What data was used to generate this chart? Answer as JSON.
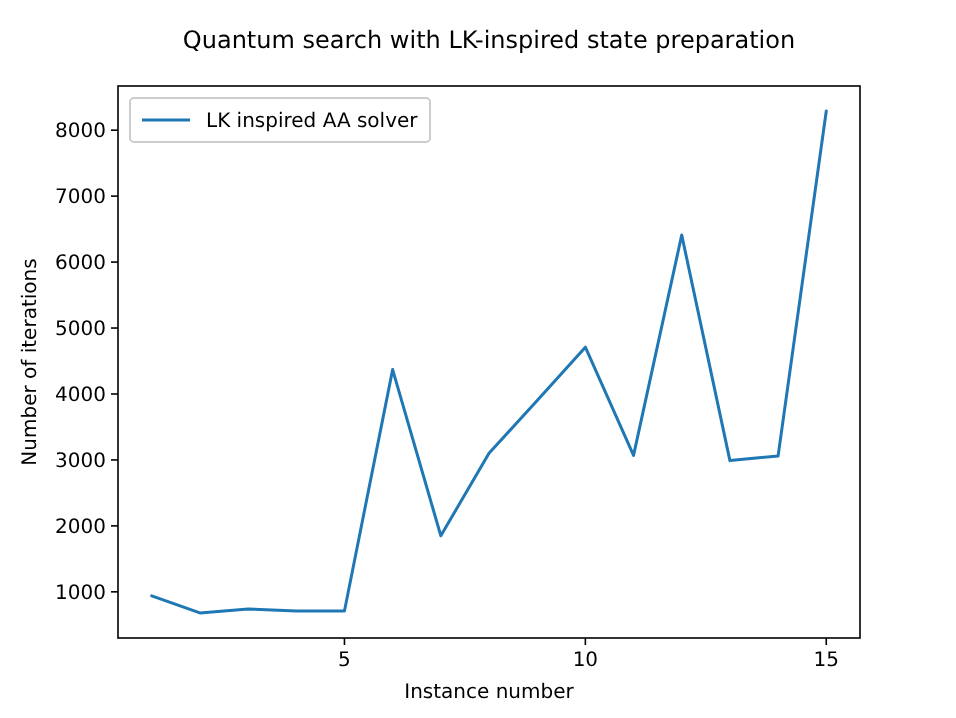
{
  "chart_data": {
    "type": "line",
    "title": "Quantum search with LK-inspired state preparation",
    "xlabel": "Instance number",
    "ylabel": "Number of iterations",
    "x": [
      1,
      2,
      3,
      4,
      5,
      6,
      7,
      8,
      9,
      10,
      11,
      12,
      13,
      14,
      15
    ],
    "series": [
      {
        "name": "LK inspired AA solver",
        "color": "#1f77b4",
        "values": [
          940,
          680,
          740,
          710,
          710,
          4370,
          1850,
          3100,
          3900,
          4710,
          3070,
          6410,
          2990,
          3060,
          8290
        ]
      }
    ],
    "xlim": [
      0.3,
      15.7
    ],
    "xticks": [
      5,
      10,
      15
    ],
    "ylim": [
      300,
      8670
    ],
    "yticks": [
      1000,
      2000,
      3000,
      4000,
      5000,
      6000,
      7000,
      8000
    ],
    "legend": "top left",
    "grid": false,
    "marker": "none",
    "line_style": "solid"
  }
}
